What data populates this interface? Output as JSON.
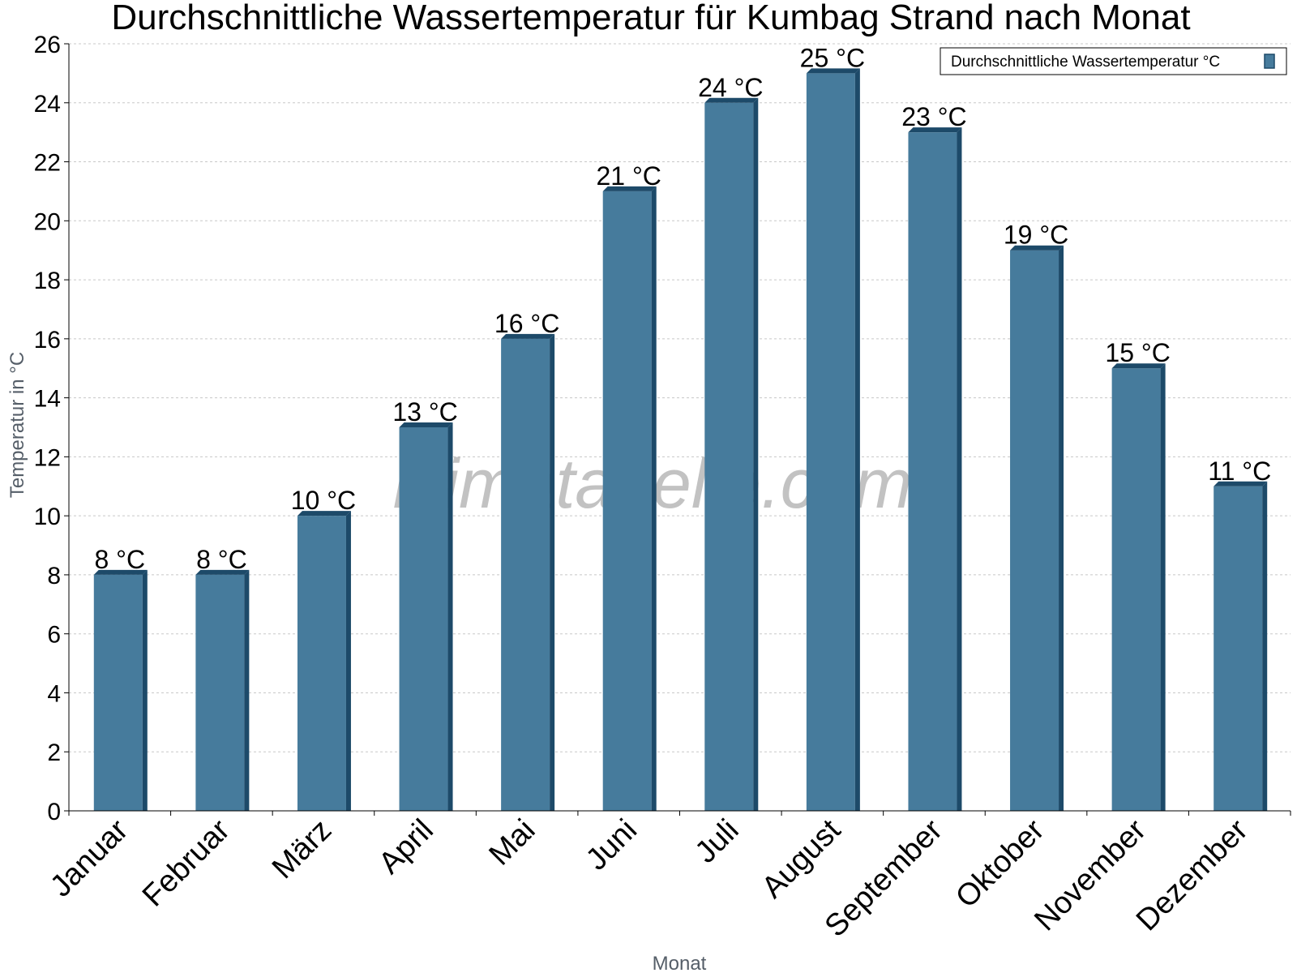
{
  "chart_data": {
    "type": "bar",
    "title": "Durchschnittliche Wassertemperatur für Kumbag Strand nach Monat",
    "xlabel": "Monat",
    "ylabel": "Temperatur in °C",
    "categories": [
      "Januar",
      "Februar",
      "März",
      "April",
      "Mai",
      "Juni",
      "Juli",
      "August",
      "September",
      "Oktober",
      "November",
      "Dezember"
    ],
    "series": [
      {
        "name": "Durchschnittliche Wassertemperatur °C",
        "values": [
          8,
          8,
          10,
          13,
          16,
          21,
          24,
          25,
          23,
          19,
          15,
          11
        ],
        "labels": [
          "8 °C",
          "8 °C",
          "10 °C",
          "13 °C",
          "16 °C",
          "21 °C",
          "24 °C",
          "25 °C",
          "23 °C",
          "19 °C",
          "15 °C",
          "11 °C"
        ]
      }
    ],
    "ylim": [
      0,
      26
    ],
    "yticks": [
      "0",
      "2",
      "4",
      "6",
      "8",
      "10",
      "12",
      "14",
      "16",
      "18",
      "20",
      "22",
      "24",
      "26"
    ],
    "grid": true,
    "legend_position": "top-right",
    "colors": {
      "bar": "#467b9c",
      "bar_side": "#1d4a69",
      "grid": "#c8c8c8"
    }
  },
  "watermark": "klimatabelle.com"
}
